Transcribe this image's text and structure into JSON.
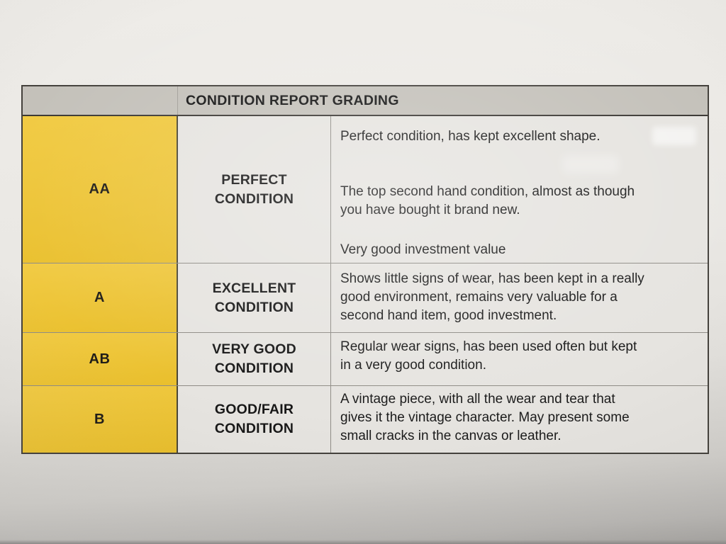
{
  "table": {
    "title": "CONDITION REPORT GRADING",
    "rows": [
      {
        "grade": "AA",
        "name_lines": [
          "PERFECT",
          "CONDITION"
        ],
        "paragraphs": [
          [
            "Perfect condition, has kept excellent shape."
          ],
          [
            "The top second hand condition, almost as though",
            "you have bought it brand new."
          ],
          [
            "Very good investment value"
          ]
        ]
      },
      {
        "grade": "A",
        "name_lines": [
          "EXCELLENT",
          "CONDITION"
        ],
        "paragraphs": [
          [
            "Shows little signs of wear, has been kept in a really",
            "good environment, remains very valuable for a",
            "second hand item, good investment."
          ]
        ]
      },
      {
        "grade": "AB",
        "name_lines": [
          "VERY GOOD",
          "CONDITION"
        ],
        "paragraphs": [
          [
            "Regular wear signs, has been used often but kept",
            "in a very good condition."
          ]
        ]
      },
      {
        "grade": "B",
        "name_lines": [
          "GOOD/FAIR",
          "CONDITION"
        ],
        "paragraphs": [
          [
            "A vintage piece, with all the wear and tear that",
            "gives it the vintage character. May present some",
            "small cracks in the canvas or leather."
          ]
        ]
      }
    ]
  },
  "colors": {
    "grade_yellow": "#F0C52F",
    "header_bg": "#C4C1BA",
    "cell_bg": "#E6E4E0",
    "text": "#1A1A1A",
    "border_dark": "#44413C",
    "border_light": "#8F8C86"
  }
}
